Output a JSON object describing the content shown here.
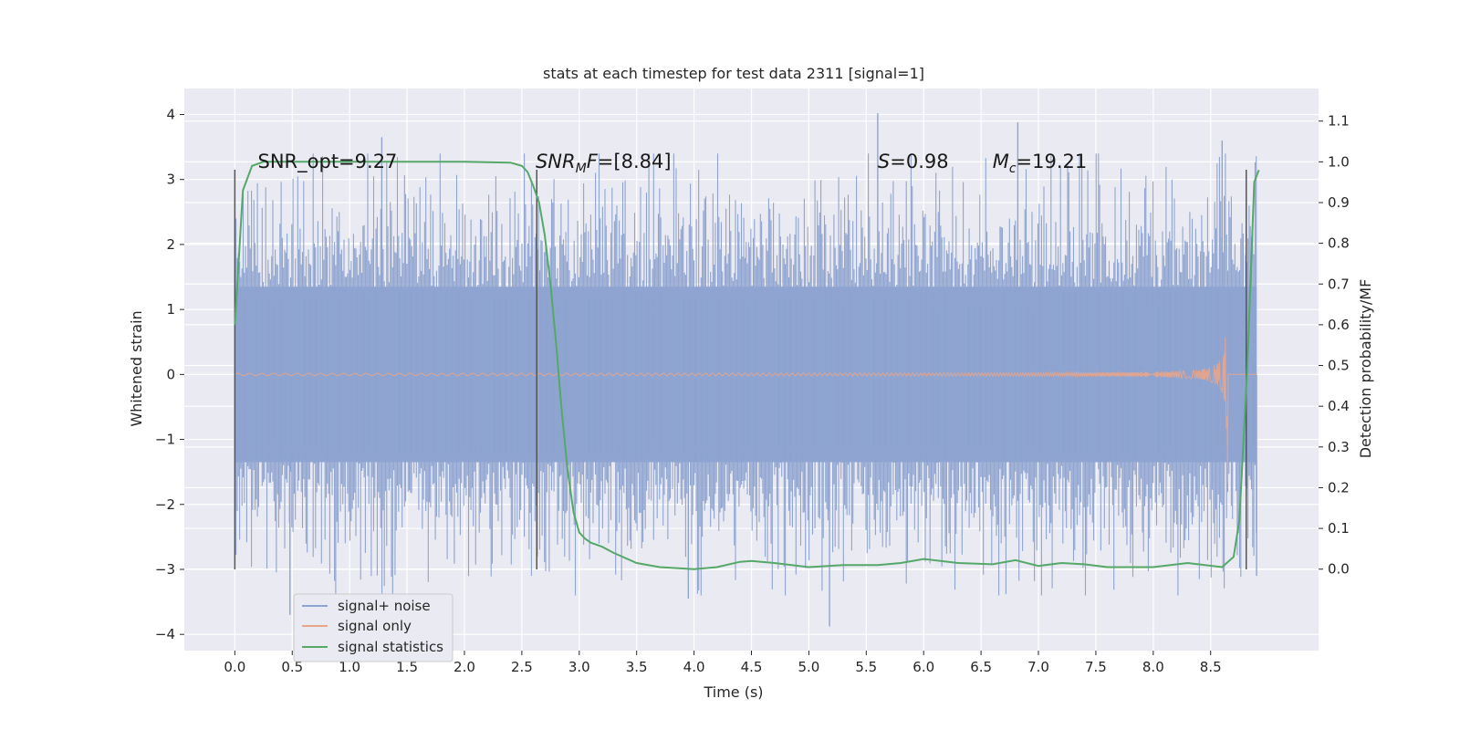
{
  "chart_data": {
    "type": "line",
    "title": "stats at each timestep for test data 2311 [signal=1]",
    "xlabel": "Time (s)",
    "ylabel": "Whitened strain",
    "ylabel_right": "Detection probability/MF",
    "xlim": [
      -0.44,
      9.44
    ],
    "ylim": [
      -4.25,
      4.4
    ],
    "ylim_right": [
      -0.2,
      1.18
    ],
    "xticks": [
      "0.0",
      "0.5",
      "1.0",
      "1.5",
      "2.0",
      "2.5",
      "3.0",
      "3.5",
      "4.0",
      "4.5",
      "5.0",
      "5.5",
      "6.0",
      "6.5",
      "7.0",
      "7.5",
      "8.0",
      "8.5"
    ],
    "yticks": [
      "−4",
      "−3",
      "−2",
      "−1",
      "0",
      "1",
      "2",
      "3",
      "4"
    ],
    "yticks_right": [
      "0.0",
      "0.1",
      "0.2",
      "0.3",
      "0.4",
      "0.5",
      "0.6",
      "0.7",
      "0.8",
      "0.9",
      "1.0",
      "1.1"
    ],
    "grid": true,
    "legend_position": "lower-left",
    "colors": {
      "noise": "#8fa4d0",
      "signal": "#e8a58a",
      "stats": "#55a868",
      "vline": "#555555",
      "background": "#eaeaf2"
    },
    "annotations": [
      {
        "prefix": "SNR_opt=9.27",
        "sub": "",
        "suffix": "",
        "x": 0.2
      },
      {
        "prefix": "SNR",
        "sub": "M",
        "mid": "F",
        "suffix": "=[8.84]",
        "x": 2.62
      },
      {
        "prefix": "S",
        "sub": "",
        "suffix": "=0.98",
        "x": 5.6
      },
      {
        "prefix": "M",
        "sub": "c",
        "suffix": "=19.21",
        "x": 6.6
      }
    ],
    "vlines": [
      0.0,
      2.63,
      8.81
    ],
    "vline_range": [
      -3.0,
      3.15
    ],
    "series": [
      {
        "name": "signal+ noise",
        "x_range": [
          0.0,
          8.9
        ],
        "envelope_y": [
          -2.4,
          2.5
        ],
        "peaks_y": [
          3.65,
          4.02,
          3.88,
          -3.88,
          3.6
        ]
      },
      {
        "name": "signal only",
        "x_range": [
          0.0,
          8.9
        ],
        "chirp_end": 8.65,
        "max_y": 1.7
      },
      {
        "name": "signal statistics",
        "x": [
          0.0,
          0.07,
          0.15,
          0.25,
          0.4,
          1.0,
          2.0,
          2.4,
          2.5,
          2.55,
          2.6,
          2.65,
          2.7,
          2.75,
          2.8,
          2.85,
          2.9,
          2.95,
          3.0,
          3.05,
          3.1,
          3.2,
          3.3,
          3.5,
          3.7,
          4.0,
          4.2,
          4.4,
          4.5,
          4.7,
          5.0,
          5.3,
          5.6,
          5.8,
          6.0,
          6.3,
          6.6,
          6.8,
          7.0,
          7.2,
          7.4,
          7.6,
          8.0,
          8.3,
          8.6,
          8.7,
          8.75,
          8.82,
          8.88,
          8.92
        ],
        "y": [
          0.6,
          0.93,
          0.99,
          1.0,
          1.0,
          1.0,
          1.0,
          0.998,
          0.99,
          0.975,
          0.94,
          0.9,
          0.82,
          0.7,
          0.55,
          0.38,
          0.24,
          0.14,
          0.09,
          0.075,
          0.065,
          0.055,
          0.04,
          0.015,
          0.005,
          0.0,
          0.005,
          0.018,
          0.02,
          0.015,
          0.005,
          0.01,
          0.01,
          0.015,
          0.025,
          0.015,
          0.012,
          0.022,
          0.008,
          0.015,
          0.012,
          0.005,
          0.005,
          0.015,
          0.005,
          0.03,
          0.12,
          0.5,
          0.95,
          0.98
        ]
      }
    ]
  }
}
